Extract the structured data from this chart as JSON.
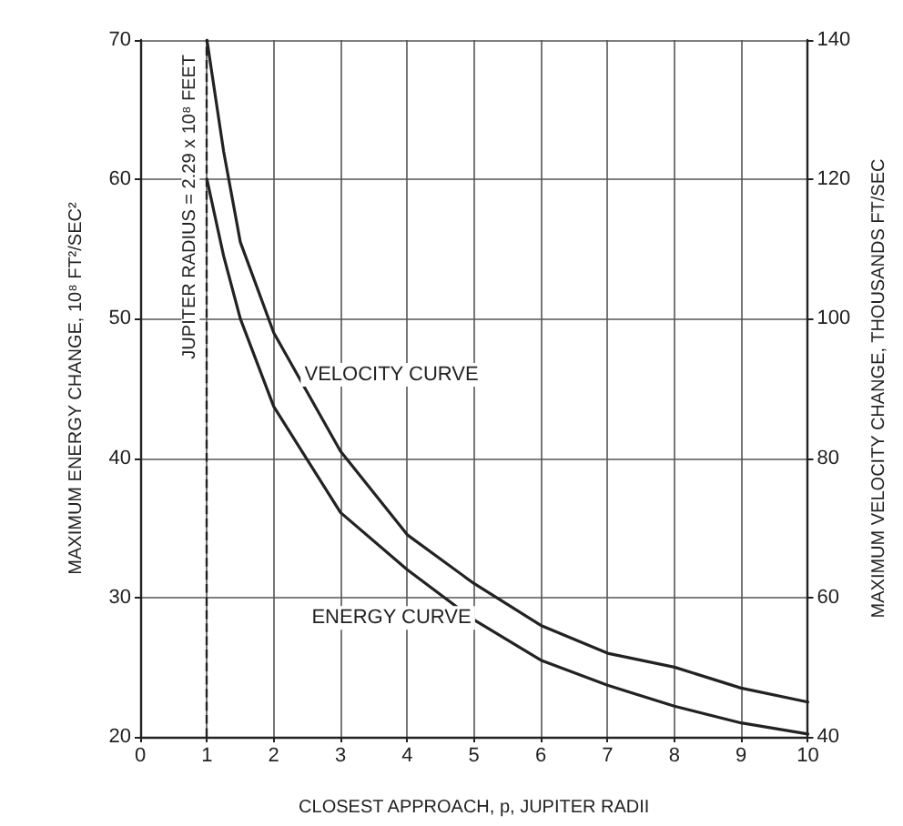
{
  "chart_data": {
    "type": "line",
    "xlabel": "CLOSEST APPROACH, p, JUPITER RADII",
    "ylabel": "MAXIMUM ENERGY CHANGE, 10⁸ FT²/SEC²",
    "y2label": "MAXIMUM VELOCITY CHANGE, THOUSANDS FT/SEC",
    "x": [
      1,
      1.25,
      1.5,
      2,
      3,
      4,
      5,
      6,
      7,
      8,
      9,
      10
    ],
    "series": [
      {
        "name": "VELOCITY CURVE",
        "color": "#222222",
        "axis": "y2",
        "values": [
          140,
          124,
          111,
          98,
          81,
          69,
          62,
          56,
          52,
          50,
          47,
          45
        ]
      },
      {
        "name": "ENERGY CURVE",
        "color": "#222222",
        "values": [
          60,
          54.5,
          50,
          43.7,
          36.1,
          32,
          28.4,
          25.5,
          23.7,
          22.2,
          21,
          20.2
        ]
      }
    ],
    "xlim": [
      0,
      10
    ],
    "xticks": [
      0,
      1,
      2,
      3,
      4,
      5,
      6,
      7,
      8,
      9,
      10
    ],
    "ylim": [
      20,
      70
    ],
    "yticks": [
      20,
      30,
      40,
      50,
      60,
      70
    ],
    "y2lim": [
      40,
      140
    ],
    "y2ticks": [
      40,
      60,
      80,
      100,
      120,
      140
    ],
    "ref_lines": [
      {
        "axis": "x",
        "value": 1,
        "line_style": "dashed",
        "color": "#222222"
      }
    ],
    "annotations": [
      "JUPITER RADIUS = 2.29 x 10⁸ FEET"
    ],
    "grid": true,
    "legend": false,
    "marker": "none",
    "line_style": "solid"
  }
}
